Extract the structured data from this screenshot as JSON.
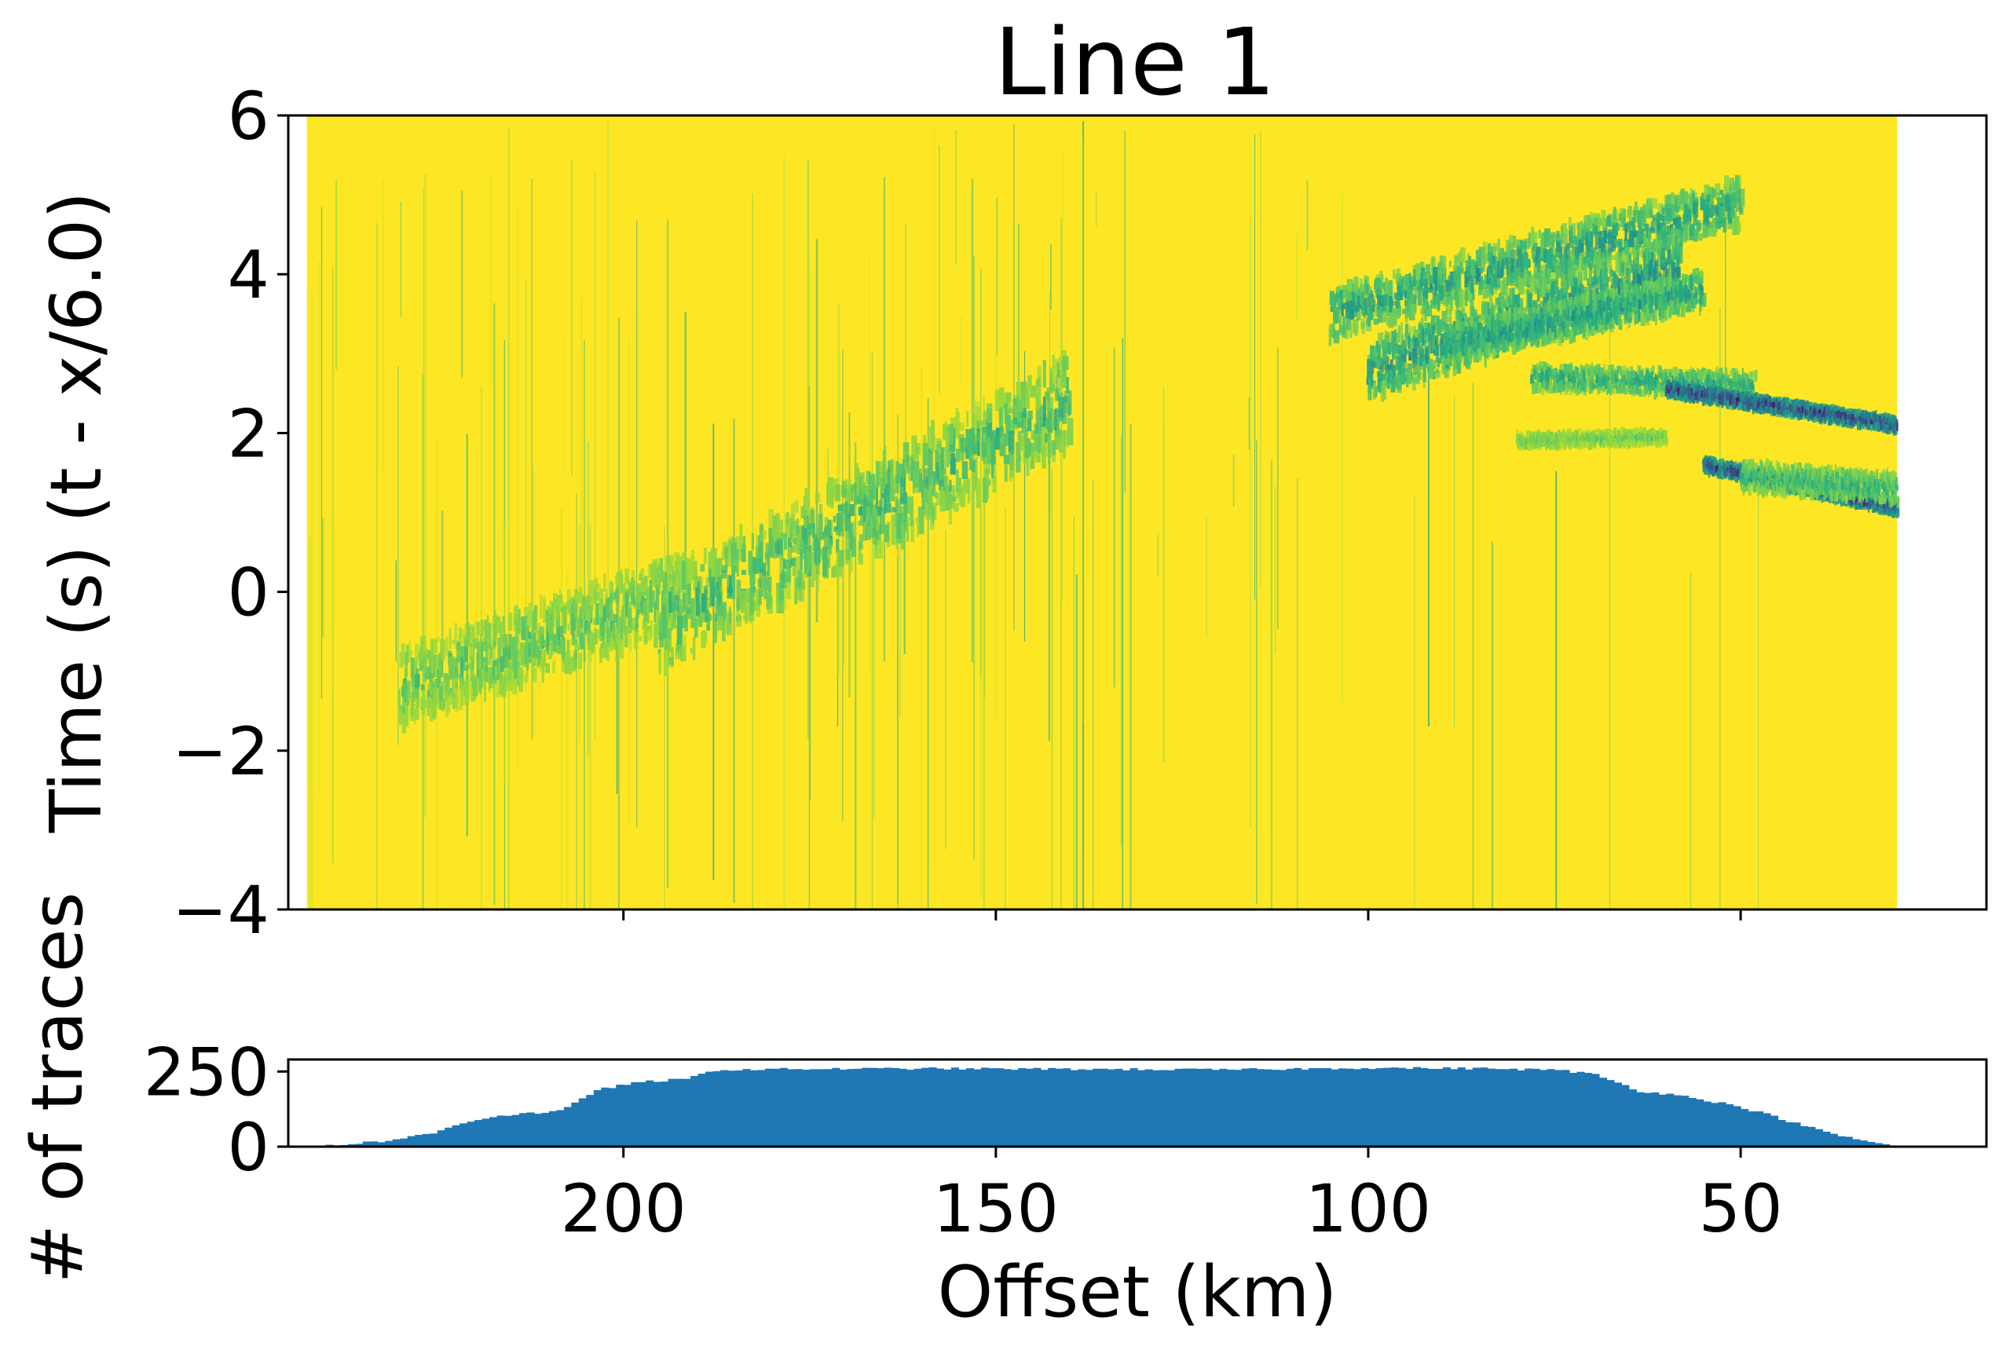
{
  "chart_data": [
    {
      "type": "heatmap",
      "title": "Line 1",
      "xlabel": "",
      "ylabel": "Time (s) (t - x/6.0)",
      "xlim": [
        245,
        17
      ],
      "ylim": [
        -4,
        6
      ],
      "yticks": [
        6,
        4,
        2,
        0,
        -2,
        -4
      ],
      "ytick_labels": [
        "6",
        "4",
        "2",
        "0",
        "−2",
        "−4"
      ],
      "xticks": [
        200,
        150,
        100,
        50
      ],
      "data_extent_x": [
        242.5,
        29.0
      ],
      "colormap": "viridis",
      "background_color": "#fde725",
      "noise_regions": [
        {
          "x": [
            242.5,
            240.0
          ],
          "y": [
            -4,
            6
          ],
          "intensity": 0.6
        },
        {
          "x": [
            240.0,
            130.0
          ],
          "y": [
            -4,
            6
          ],
          "intensity": 0.32
        },
        {
          "x": [
            130.0,
            100.0
          ],
          "y": [
            -4,
            6
          ],
          "intensity": 0.18
        },
        {
          "x": [
            100.0,
            44.0
          ],
          "y": [
            -4,
            6
          ],
          "intensity": 0.06
        }
      ],
      "events": [
        {
          "x0": 230,
          "y0": -1.2,
          "x1": 192,
          "y1": 0.0,
          "width": 0.9,
          "strength": 0.35
        },
        {
          "x0": 195,
          "y0": -0.4,
          "x1": 140,
          "y1": 2.4,
          "width": 1.1,
          "strength": 0.42
        },
        {
          "x0": 105,
          "y0": 3.5,
          "x1": 50,
          "y1": 4.9,
          "width": 0.6,
          "strength": 0.55
        },
        {
          "x0": 100,
          "y0": 2.8,
          "x1": 58,
          "y1": 4.1,
          "width": 0.7,
          "strength": 0.6
        },
        {
          "x0": 90,
          "y0": 3.1,
          "x1": 55,
          "y1": 3.8,
          "width": 0.45,
          "strength": 0.55
        },
        {
          "x0": 78,
          "y0": 2.7,
          "x1": 48,
          "y1": 2.6,
          "width": 0.3,
          "strength": 0.5
        },
        {
          "x0": 60,
          "y0": 2.55,
          "x1": 29,
          "y1": 2.1,
          "width": 0.18,
          "strength": 1.0
        },
        {
          "x0": 80,
          "y0": 1.9,
          "x1": 60,
          "y1": 1.95,
          "width": 0.18,
          "strength": 0.3
        },
        {
          "x0": 55,
          "y0": 1.6,
          "x1": 29,
          "y1": 1.05,
          "width": 0.18,
          "strength": 1.0
        },
        {
          "x0": 50,
          "y0": 1.45,
          "x1": 29,
          "y1": 1.3,
          "width": 0.35,
          "strength": 0.45
        }
      ]
    },
    {
      "type": "bar",
      "title": "",
      "xlabel": "Offset (km)",
      "ylabel": "# of traces",
      "xlim": [
        245,
        17
      ],
      "ylim": [
        0,
        290
      ],
      "yticks": [
        0,
        250
      ],
      "ytick_labels": [
        "0",
        "250"
      ],
      "xticks": [
        200,
        150,
        100,
        50
      ],
      "xtick_labels": [
        "200",
        "150",
        "100",
        "50"
      ],
      "bar_color": "#1f77b4",
      "bin_width_km": 1.0,
      "count_profile_x": [
        242,
        238,
        232,
        226,
        222,
        218,
        214,
        210,
        208,
        204,
        198,
        192,
        188,
        180,
        160,
        140,
        120,
        100,
        85,
        75,
        70,
        64,
        58,
        52,
        48,
        44,
        40,
        36,
        32,
        29
      ],
      "count_profile_y": [
        2,
        8,
        20,
        45,
        80,
        100,
        110,
        115,
        128,
        190,
        215,
        225,
        255,
        258,
        260,
        258,
        256,
        262,
        260,
        255,
        240,
        185,
        168,
        140,
        115,
        85,
        55,
        30,
        10,
        0
      ]
    }
  ]
}
